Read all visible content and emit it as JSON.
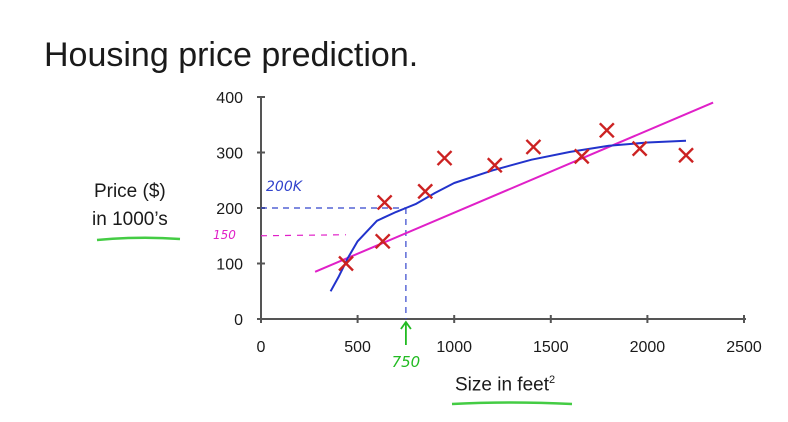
{
  "title": "Housing price prediction.",
  "colors": {
    "axis": "#555555",
    "points": "#cc2222",
    "linear_fit": "#e020c8",
    "curve_fit": "#2233cc",
    "annotation_blue": "#3344cc",
    "annotation_pink": "#e020c8",
    "annotation_green": "#22bb22",
    "underline": "#44cc44"
  },
  "chart_data": {
    "type": "scatter",
    "title": "Housing price prediction.",
    "xlabel": "Size in feet",
    "xlabel_superscript": "2",
    "ylabel_lines": [
      "Price ($)",
      "in 1000’s"
    ],
    "xlim": [
      0,
      2500
    ],
    "ylim": [
      0,
      400
    ],
    "xticks": [
      0,
      500,
      1000,
      1500,
      2000,
      2500
    ],
    "yticks": [
      0,
      100,
      200,
      300,
      400
    ],
    "xtick_labels": [
      "0",
      "500",
      "1000",
      "1500",
      "2000",
      "2500"
    ],
    "ytick_labels": [
      "0",
      "100",
      "200",
      "300",
      "400"
    ],
    "series": [
      {
        "kind": "points",
        "marker": "x",
        "x": [
          440,
          630,
          640,
          850,
          950,
          1210,
          1410,
          1660,
          1790,
          1960,
          2200
        ],
        "y": [
          100,
          140,
          210,
          230,
          290,
          277,
          310,
          293,
          340,
          307,
          295
        ]
      },
      {
        "kind": "line",
        "style": "straight",
        "x": [
          280,
          2340
        ],
        "y": [
          85,
          390
        ]
      },
      {
        "kind": "line",
        "style": "curve",
        "x": [
          360,
          400,
          450,
          500,
          600,
          700,
          750,
          800,
          900,
          1000,
          1200,
          1400,
          1600,
          1800,
          2000,
          2200
        ],
        "y": [
          50,
          75,
          110,
          140,
          177,
          193,
          200,
          207,
          227,
          245,
          268,
          287,
          301,
          312,
          318,
          321
        ]
      }
    ],
    "annotations": [
      {
        "text": "200K",
        "x": 750,
        "y": 200,
        "color": "blue"
      },
      {
        "text": "150",
        "x": 750,
        "y": 150,
        "color": "pink"
      },
      {
        "text": "750",
        "x": 750,
        "y": 0,
        "color": "green"
      }
    ],
    "grid": false,
    "legend": "none"
  }
}
